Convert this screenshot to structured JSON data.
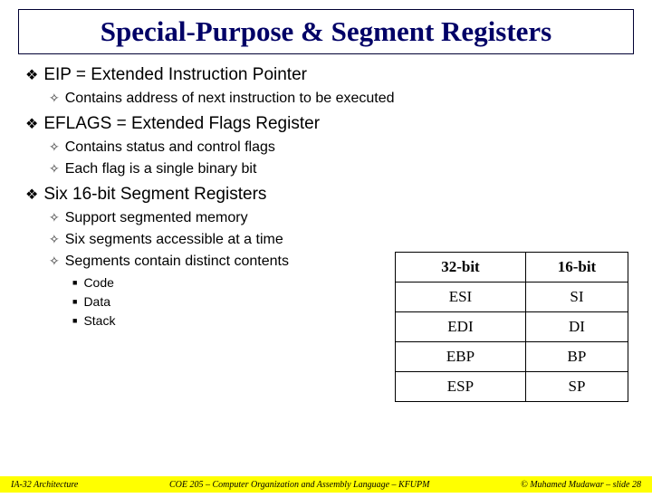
{
  "title": "Special-Purpose & Segment Registers",
  "items": [
    {
      "level": 1,
      "text": "EIP =  Extended Instruction Pointer"
    },
    {
      "level": 2,
      "text": "Contains address of next instruction to be executed"
    },
    {
      "level": 1,
      "text": "EFLAGS = Extended Flags Register"
    },
    {
      "level": 2,
      "text": "Contains status and control flags"
    },
    {
      "level": 2,
      "text": "Each flag is a single binary bit"
    },
    {
      "level": 1,
      "text": "Six 16-bit Segment Registers"
    },
    {
      "level": 2,
      "text": "Support segmented memory"
    },
    {
      "level": 2,
      "text": "Six segments accessible at a time"
    },
    {
      "level": 2,
      "text": "Segments contain distinct contents"
    },
    {
      "level": 3,
      "text": "Code"
    },
    {
      "level": 3,
      "text": "Data"
    },
    {
      "level": 3,
      "text": "Stack"
    }
  ],
  "table": {
    "headers": [
      "32-bit",
      "16-bit"
    ],
    "rows": [
      [
        "ESI",
        "SI"
      ],
      [
        "EDI",
        "DI"
      ],
      [
        "EBP",
        "BP"
      ],
      [
        "ESP",
        "SP"
      ]
    ]
  },
  "footer": {
    "left": "IA-32 Architecture",
    "center": "COE 205 – Computer Organization and Assembly Language – KFUPM",
    "right": "© Muhamed Mudawar – slide 28"
  },
  "colors": {
    "title": "#000066",
    "highlight": "#ffff00",
    "text": "#000000",
    "background": "#ffffff"
  }
}
